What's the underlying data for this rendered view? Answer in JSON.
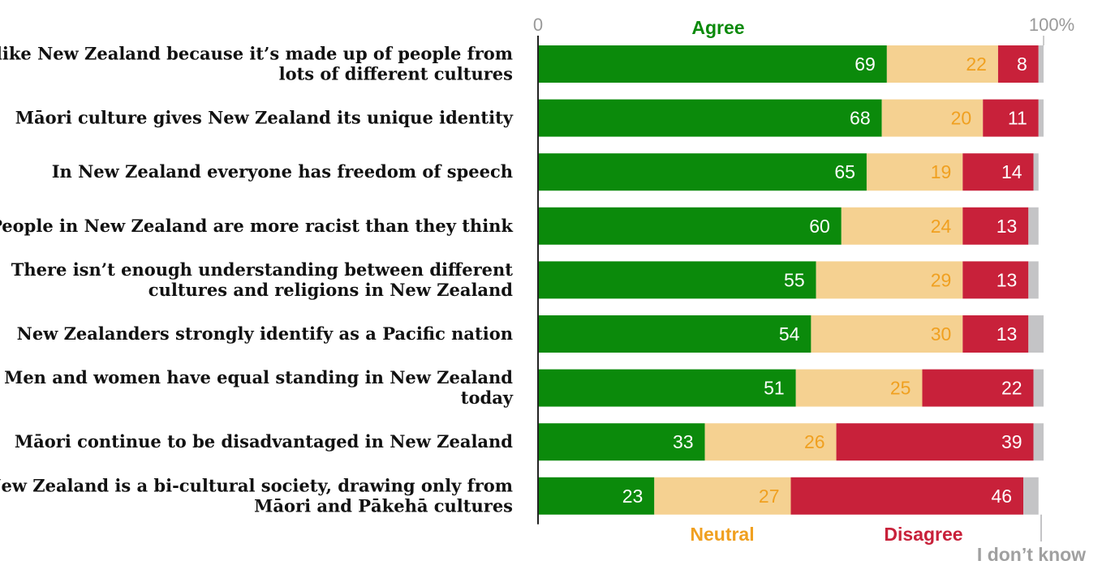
{
  "colors": {
    "agree": "#0b8a0b",
    "neutral": "#f5d191",
    "neutral_text": "#f0a020",
    "disagree": "#c8213a",
    "dont_know": "#c4c4c6",
    "label_light": "#ffffff"
  },
  "chart_data": {
    "type": "bar",
    "orientation": "horizontal",
    "stacked": true,
    "xlim": [
      0,
      100
    ],
    "x_ticks": [
      "0",
      "100%"
    ],
    "categories": [
      [
        "I like New Zealand because it’s made up of people from",
        "lots of different cultures"
      ],
      [
        "Māori culture gives New Zealand its unique identity"
      ],
      [
        "In New Zealand everyone has freedom of speech"
      ],
      [
        "People in New Zealand are more racist than they think"
      ],
      [
        "There isn’t enough understanding between different",
        "cultures and religions in New Zealand"
      ],
      [
        "New Zealanders strongly identify as a Pacific nation"
      ],
      [
        "Men and women have equal standing in New Zealand",
        "today"
      ],
      [
        "Māori continue to be disadvantaged in New Zealand"
      ],
      [
        "New Zealand is a bi-cultural society, drawing only from",
        "Māori and Pākehā cultures"
      ]
    ],
    "series": [
      {
        "name": "Agree",
        "key": "agree",
        "values": [
          69,
          68,
          65,
          60,
          55,
          54,
          51,
          33,
          23
        ]
      },
      {
        "name": "Neutral",
        "key": "neutral",
        "values": [
          22,
          20,
          19,
          24,
          29,
          30,
          25,
          26,
          27
        ]
      },
      {
        "name": "Disagree",
        "key": "disagree",
        "values": [
          8,
          11,
          14,
          13,
          13,
          13,
          22,
          39,
          46
        ]
      },
      {
        "name": "I don’t know",
        "key": "dont_know",
        "values": [
          1,
          1,
          1,
          2,
          2,
          3,
          2,
          2,
          3
        ]
      }
    ],
    "grid": false,
    "legend": "inline"
  }
}
